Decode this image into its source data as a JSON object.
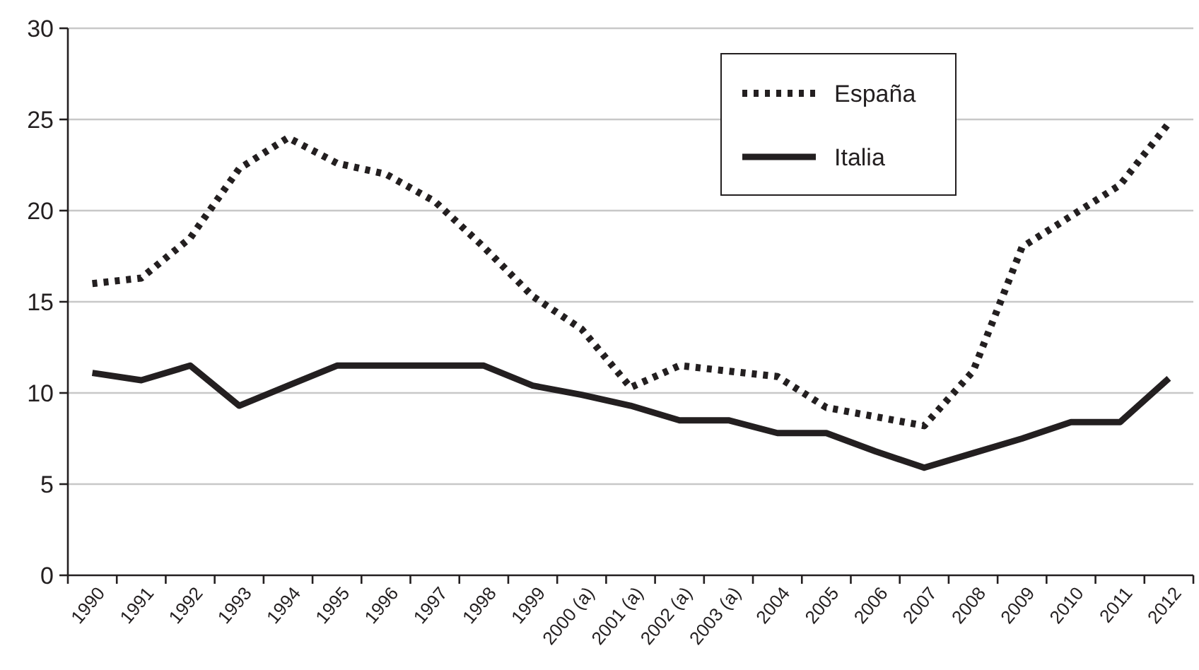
{
  "chart_data": {
    "type": "line",
    "categories": [
      "1990",
      "1991",
      "1992",
      "1993",
      "1994",
      "1995",
      "1996",
      "1997",
      "1998",
      "1999",
      "2000 (a)",
      "2001 (a)",
      "2002 (a)",
      "2003 (a)",
      "2004",
      "2005",
      "2006",
      "2007",
      "2008",
      "2009",
      "2010",
      "2011",
      "2012"
    ],
    "series": [
      {
        "name": "España",
        "color": "#231f20",
        "line_style": "dotted",
        "values": [
          16,
          16.3,
          18.5,
          22.3,
          24,
          22.6,
          22,
          20.5,
          18,
          15.3,
          13.5,
          10.3,
          11.5,
          11.2,
          10.9,
          9.2,
          8.7,
          8.2,
          11.2,
          18,
          19.7,
          21.4,
          24.8
        ]
      },
      {
        "name": "Italia",
        "color": "#231f20",
        "line_style": "solid",
        "values": [
          11.1,
          10.7,
          11.5,
          9.3,
          10.4,
          11.5,
          11.5,
          11.5,
          11.5,
          10.4,
          9.9,
          9.3,
          8.5,
          8.5,
          7.8,
          7.8,
          6.8,
          5.9,
          6.7,
          7.5,
          8.4,
          8.4,
          10.8
        ]
      }
    ],
    "ylim": [
      0,
      30
    ],
    "yticks": [
      0,
      5,
      10,
      15,
      20,
      25,
      30
    ],
    "grid": "y",
    "legend": "top right",
    "marker": "none"
  }
}
